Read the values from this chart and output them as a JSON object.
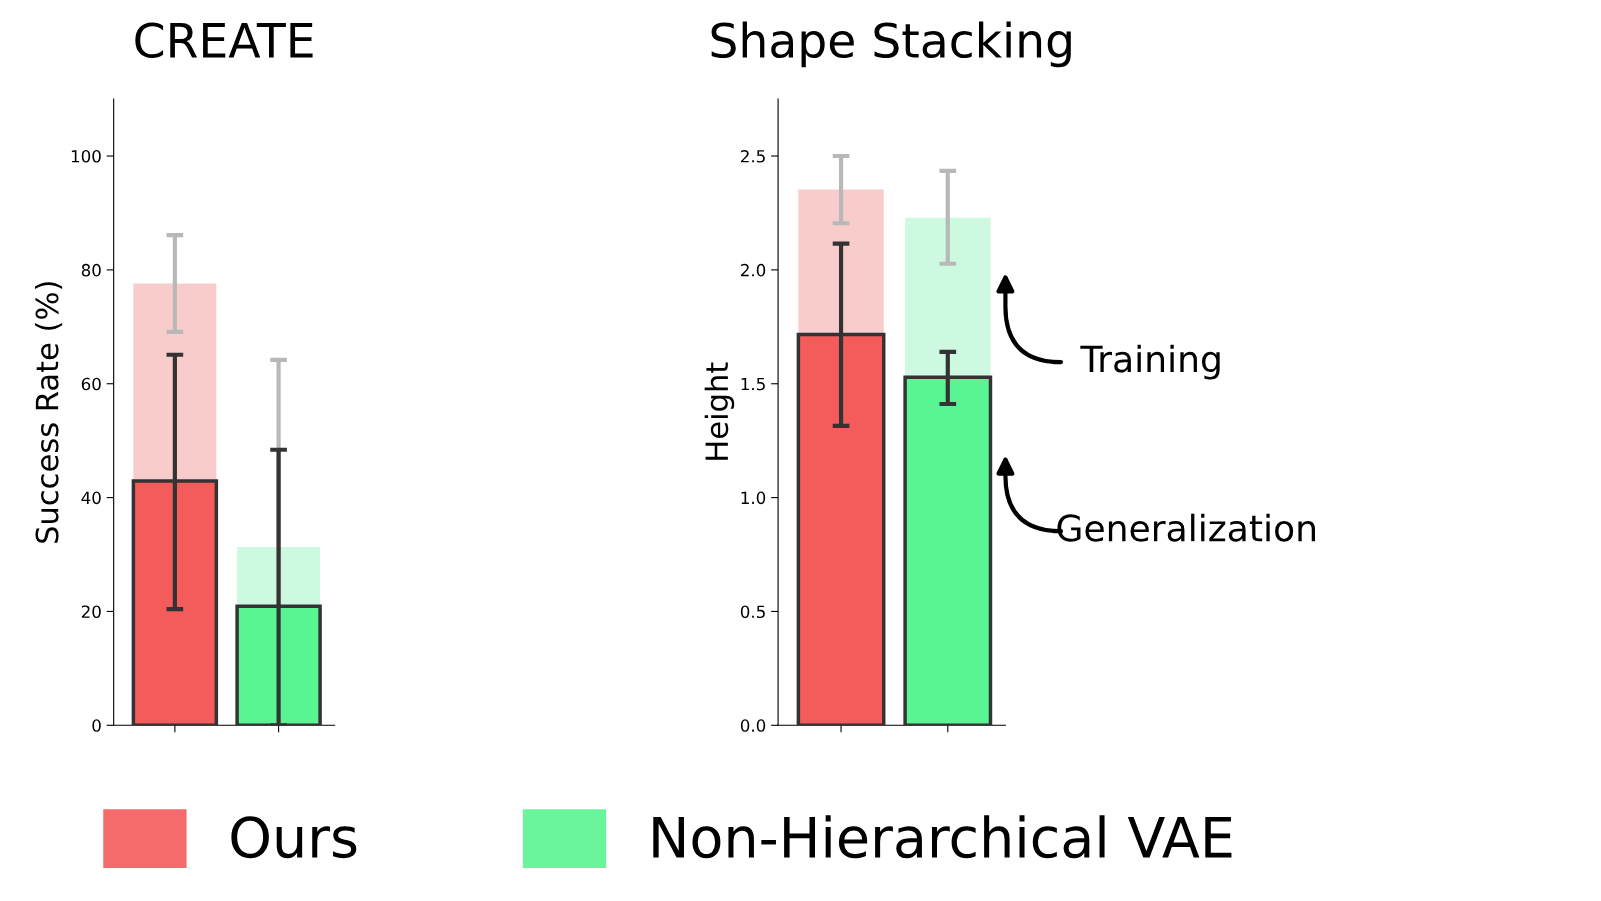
{
  "chart_data": [
    {
      "type": "bar",
      "title": "CREATE",
      "ylabel": "Success Rate (%)",
      "categories": [
        null,
        null
      ],
      "ylim": [
        0,
        110
      ],
      "yticks": [
        0,
        20,
        40,
        60,
        80,
        100
      ],
      "legend": "bottom",
      "stacked": true,
      "series": [
        {
          "name": "Ours",
          "color": "#f45b5b",
          "values": [
            42.9,
            null
          ],
          "errors": [
            [
              20.4,
              65.1
            ],
            null
          ]
        },
        {
          "name": "Non-Hierarchical VAE",
          "color": "#5af593",
          "values": [
            null,
            20.9
          ],
          "errors": [
            null,
            [
              0,
              48.4
            ]
          ]
        },
        {
          "color": "#f9cccc",
          "values": [
            34.7,
            null
          ],
          "errors": [
            8.5,
            null
          ]
        },
        {
          "color": "#ccf9e0",
          "values": [
            null,
            10.4
          ],
          "errors": [
            null,
            [
              0,
              64.2
            ]
          ]
        }
      ]
    },
    {
      "type": "bar",
      "title": "Shape Stacking",
      "ylabel": "Height",
      "categories": [
        null,
        null
      ],
      "ylim": [
        0,
        2.75
      ],
      "yticks": [
        {
          "value": 0,
          "label": "0.0"
        },
        0.5,
        {
          "value": 1,
          "label": "1.0"
        },
        1.5,
        {
          "value": 2,
          "label": "2.0"
        },
        2.5
      ],
      "stacked": true,
      "series": [
        {
          "color": "#f45b5b",
          "values": [
            1.716,
            null
          ],
          "errors": [
            [
              1.315,
              2.115
            ],
            null
          ]
        },
        {
          "color": "#5af593",
          "values": [
            null,
            1.529
          ],
          "errors": [
            null,
            [
              1.411,
              1.64
            ]
          ]
        },
        {
          "color": "#f9cccc",
          "values": [
            0.637,
            null
          ],
          "errors": [
            [
              2.205,
              2.5
            ],
            null
          ]
        },
        {
          "color": "#ccf9e0",
          "values": [
            null,
            0.7
          ],
          "errors": [
            null,
            [
              2.027,
              2.435
            ]
          ]
        }
      ],
      "annotations": [
        "Training",
        "Generalization"
      ]
    }
  ]
}
